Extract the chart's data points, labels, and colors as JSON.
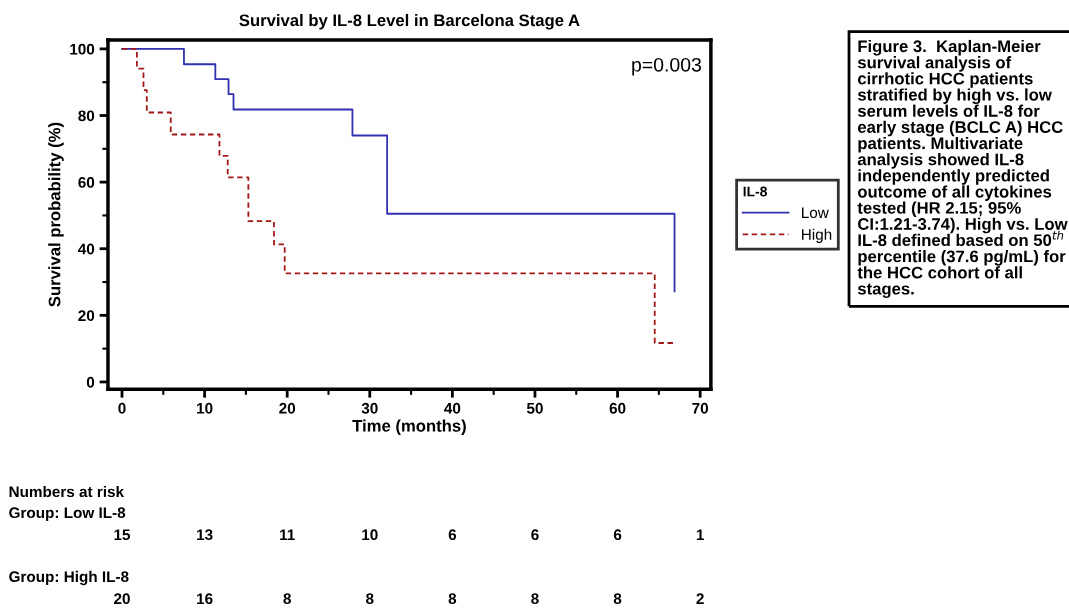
{
  "chart_data": {
    "type": "step",
    "title": "Survival by IL-8 Level in Barcelona Stage A",
    "xlabel": "Time (months)",
    "ylabel": "Survival probability (%)",
    "legend_title": "IL-8",
    "series": [
      {
        "name": "Low",
        "color": "#3030b0",
        "line_style": "solid",
        "x": [
          0,
          7.5,
          11.3,
          12.9,
          13.5,
          27.9,
          32.1,
          66.9
        ],
        "values": [
          100,
          95.4,
          90.9,
          86.4,
          81.8,
          74,
          50.5,
          27.2
        ]
      },
      {
        "name": "High",
        "color": "#a01818",
        "line_style": "dashed",
        "x": [
          0,
          1.8,
          2.6,
          3.0,
          5.9,
          11.8,
          12.8,
          15.3,
          18.4,
          19.7,
          64.5,
          66.9
        ],
        "values": [
          100,
          94.1,
          87.6,
          80.9,
          74.3,
          67.9,
          61.4,
          48.3,
          41.3,
          32.6,
          11.7,
          11.7
        ]
      }
    ],
    "xlim": [
      -1.7,
      71.3
    ],
    "ylim": [
      -2.2,
      102.7
    ],
    "xticks": [
      0,
      10,
      20,
      30,
      40,
      50,
      60,
      70
    ],
    "yticks": [
      0,
      20,
      40,
      60,
      80,
      100
    ],
    "grid": false,
    "legend": "right",
    "marker": "none",
    "annotations": [
      "p=0.003",
      "Numbers at risk",
      "Group: Low IL-8",
      "15",
      "13",
      "11",
      "10",
      "6",
      "6",
      "6",
      "1",
      "Group: High IL-8",
      "20",
      "16",
      "8",
      "8",
      "8",
      "8",
      "8",
      "2",
      "Figure 3.  Kaplan-Meier survival analysis of cirrhotic HCC patients stratified by high vs. low serum levels of IL-8 for early stage (BCLC A) HCC patients. Multivariate analysis showed IL-8 independently predicted outcome of all cytokines tested (HR 2.15; 95% CI:1.21-3.74). High vs. Low IL-8 defined based on 50$^{th}$ percentile (37.6 pg/mL) for the HCC cohort of all stages."
    ]
  }
}
